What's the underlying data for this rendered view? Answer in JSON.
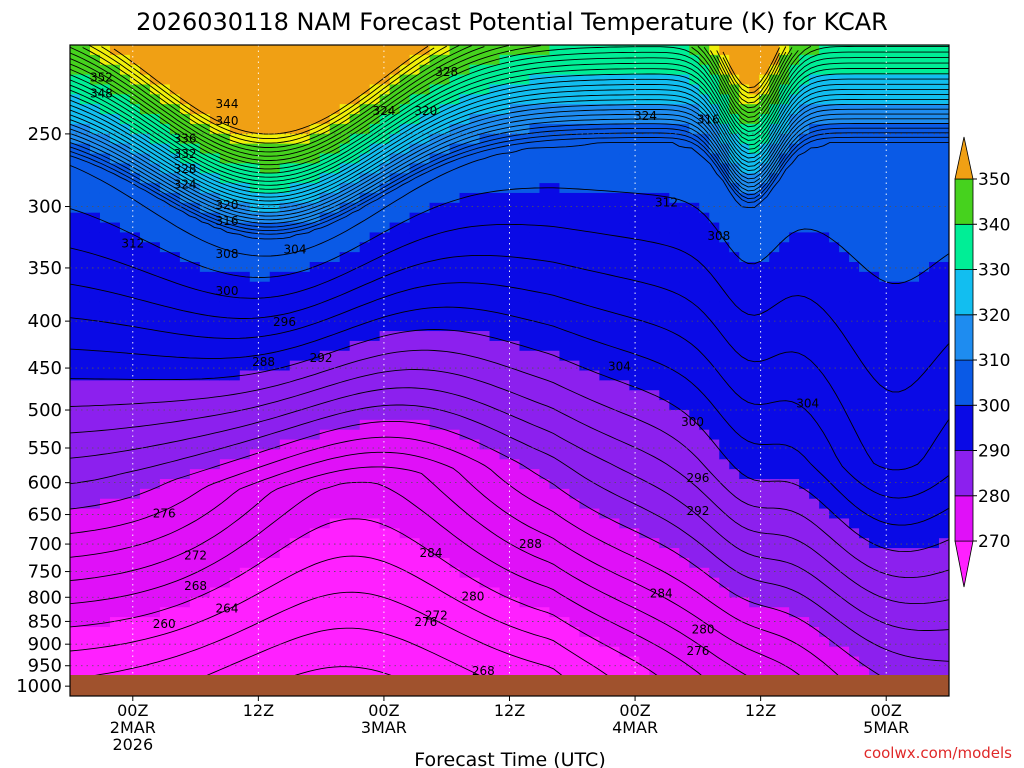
{
  "chart_data": {
    "type": "heatmap",
    "title": "2026030118 NAM Forecast Potential Temperature (K) for KCAR",
    "xlabel": "Forecast Time (UTC)",
    "ylabel": "",
    "credit": "coolwx.com/models",
    "x_ticks": [
      {
        "hours": 0,
        "lines": [
          "00Z",
          "2MAR",
          "2026"
        ]
      },
      {
        "hours": 12,
        "lines": [
          "12Z"
        ]
      },
      {
        "hours": 24,
        "lines": [
          "00Z",
          "3MAR"
        ]
      },
      {
        "hours": 36,
        "lines": [
          "12Z"
        ]
      },
      {
        "hours": 48,
        "lines": [
          "00Z",
          "4MAR"
        ]
      },
      {
        "hours": 60,
        "lines": [
          "12Z"
        ]
      },
      {
        "hours": 72,
        "lines": [
          "00Z",
          "5MAR"
        ]
      }
    ],
    "xlim_hours": [
      -6,
      78
    ],
    "y_ticks": [
      "250",
      "300",
      "350",
      "400",
      "450",
      "500",
      "550",
      "600",
      "650",
      "700",
      "750",
      "800",
      "850",
      "900",
      "950",
      "1000"
    ],
    "ylim_hpa": [
      200,
      1025
    ],
    "y_log": true,
    "colorbar": {
      "ticks": [
        "270",
        "280",
        "290",
        "300",
        "310",
        "320",
        "330",
        "340",
        "350"
      ],
      "bins": [
        {
          "min": 265,
          "max": 270,
          "color": "#ff20ff"
        },
        {
          "min": 270,
          "max": 280,
          "color": "#e010f8"
        },
        {
          "min": 280,
          "max": 290,
          "color": "#8c20ee"
        },
        {
          "min": 290,
          "max": 300,
          "color": "#0a0ae6"
        },
        {
          "min": 300,
          "max": 310,
          "color": "#0a5ae6"
        },
        {
          "min": 310,
          "max": 320,
          "color": "#1e8cf0"
        },
        {
          "min": 320,
          "max": 330,
          "color": "#12bef0"
        },
        {
          "min": 330,
          "max": 340,
          "color": "#00ee96"
        },
        {
          "min": 340,
          "max": 350,
          "color": "#46d21e"
        },
        {
          "min": 350,
          "max": 355,
          "color": "#f0f00a"
        },
        {
          "min": 355,
          "max": 360,
          "color": "#f0a014"
        }
      ]
    },
    "ground_color": "#a0522d",
    "contour_labels": [
      {
        "value": "352",
        "hours": -3.0,
        "p": 217
      },
      {
        "value": "348",
        "hours": -3.0,
        "p": 226
      },
      {
        "value": "344",
        "hours": 9.0,
        "p": 232
      },
      {
        "value": "340",
        "hours": 9.0,
        "p": 242
      },
      {
        "value": "336",
        "hours": 5.0,
        "p": 253
      },
      {
        "value": "332",
        "hours": 5.0,
        "p": 263
      },
      {
        "value": "328",
        "hours": 5.0,
        "p": 273
      },
      {
        "value": "324",
        "hours": 5.0,
        "p": 284
      },
      {
        "value": "320",
        "hours": 9.0,
        "p": 299
      },
      {
        "value": "316",
        "hours": 9.0,
        "p": 311
      },
      {
        "value": "312",
        "hours": 0.0,
        "p": 329
      },
      {
        "value": "308",
        "hours": 9.0,
        "p": 338
      },
      {
        "value": "304",
        "hours": 15.5,
        "p": 334
      },
      {
        "value": "300",
        "hours": 9.0,
        "p": 371
      },
      {
        "value": "296",
        "hours": 14.5,
        "p": 401
      },
      {
        "value": "292",
        "hours": 18.0,
        "p": 439
      },
      {
        "value": "288",
        "hours": 12.5,
        "p": 443
      },
      {
        "value": "328",
        "hours": 30.0,
        "p": 214
      },
      {
        "value": "324",
        "hours": 24.0,
        "p": 236
      },
      {
        "value": "320",
        "hours": 28.0,
        "p": 236
      },
      {
        "value": "324",
        "hours": 49.0,
        "p": 239
      },
      {
        "value": "316",
        "hours": 55.0,
        "p": 241
      },
      {
        "value": "312",
        "hours": 51.0,
        "p": 297
      },
      {
        "value": "308",
        "hours": 56.0,
        "p": 323
      },
      {
        "value": "304",
        "hours": 46.5,
        "p": 448
      },
      {
        "value": "304",
        "hours": 64.5,
        "p": 492
      },
      {
        "value": "300",
        "hours": 53.5,
        "p": 515
      },
      {
        "value": "296",
        "hours": 54.0,
        "p": 593
      },
      {
        "value": "292",
        "hours": 54.0,
        "p": 644
      },
      {
        "value": "288",
        "hours": 38.0,
        "p": 700
      },
      {
        "value": "284",
        "hours": 28.5,
        "p": 716
      },
      {
        "value": "284",
        "hours": 50.5,
        "p": 792
      },
      {
        "value": "280",
        "hours": 32.5,
        "p": 798
      },
      {
        "value": "276",
        "hours": 28.0,
        "p": 851
      },
      {
        "value": "280",
        "hours": 54.5,
        "p": 867
      },
      {
        "value": "276",
        "hours": 54.0,
        "p": 915
      },
      {
        "value": "272",
        "hours": 29.0,
        "p": 837
      },
      {
        "value": "268",
        "hours": 33.5,
        "p": 963
      },
      {
        "value": "276",
        "hours": 3.0,
        "p": 648
      },
      {
        "value": "272",
        "hours": 6.0,
        "p": 720
      },
      {
        "value": "268",
        "hours": 6.0,
        "p": 778
      },
      {
        "value": "264",
        "hours": 9.0,
        "p": 823
      },
      {
        "value": "260",
        "hours": 3.0,
        "p": 856
      }
    ]
  }
}
